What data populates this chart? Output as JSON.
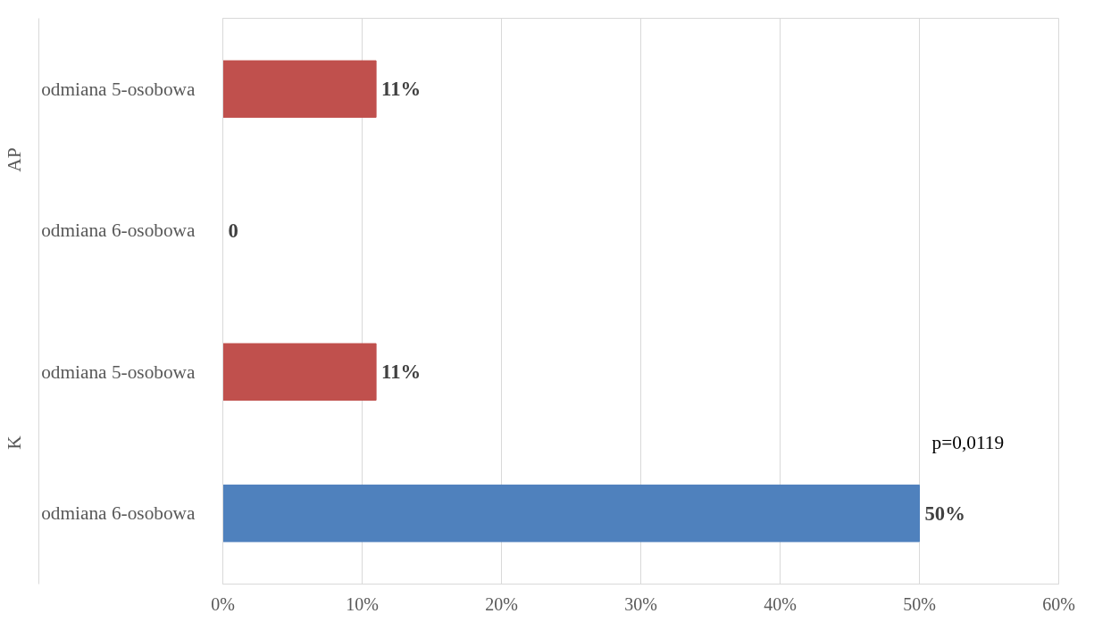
{
  "chart_data": {
    "type": "bar",
    "orientation": "horizontal",
    "categories": [
      "odmiana 5-osobowa",
      "odmiana 6-osobowa",
      "odmiana 5-osobowa",
      "odmiana 6-osobowa"
    ],
    "values": [
      11,
      0,
      11,
      50
    ],
    "colors": [
      "#c0504d",
      "#c0504d",
      "#c0504d",
      "#4f81bd"
    ],
    "value_labels": [
      "11%",
      "0",
      "11%",
      "50%"
    ],
    "xlim": [
      0,
      60
    ],
    "xticks": [
      {
        "value": 0,
        "label": "0%"
      },
      {
        "value": 10,
        "label": "10%"
      },
      {
        "value": 20,
        "label": "20%"
      },
      {
        "value": 30,
        "label": "30%"
      },
      {
        "value": 40,
        "label": "40%"
      },
      {
        "value": 50,
        "label": "50%"
      },
      {
        "value": 60,
        "label": "60%"
      }
    ],
    "grid": "x",
    "annotations": [
      "AP",
      "K",
      "p=0,0119"
    ]
  }
}
